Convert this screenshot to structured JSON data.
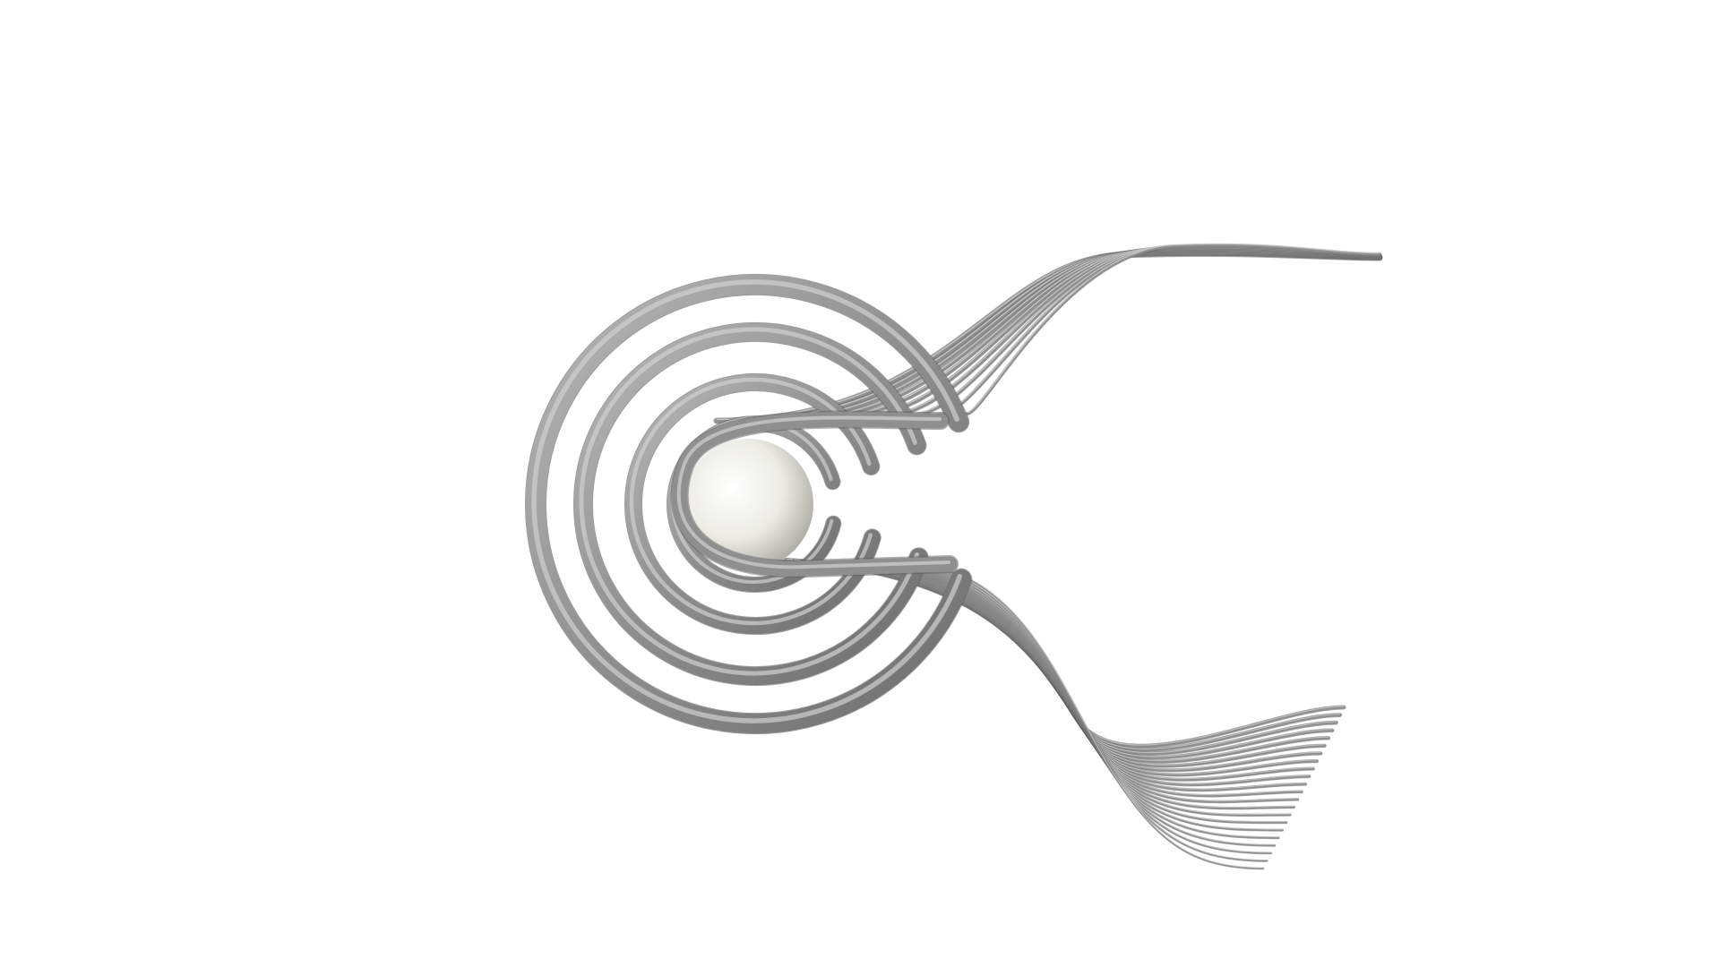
{
  "scene": {
    "background_color": "#ffffff",
    "tube_color": "#8f8f8f",
    "tube_highlight": "#d0d0d0",
    "tube_shadow": "#5e5e5e",
    "sphere_color": "#ecebe6",
    "sphere_highlight": "#ffffff",
    "sphere_shadow": "#a8a6a0",
    "subject": {
      "rings_count": 4,
      "upper_ribbon_strands": 10,
      "lower_ribbon_strands": 22
    }
  }
}
